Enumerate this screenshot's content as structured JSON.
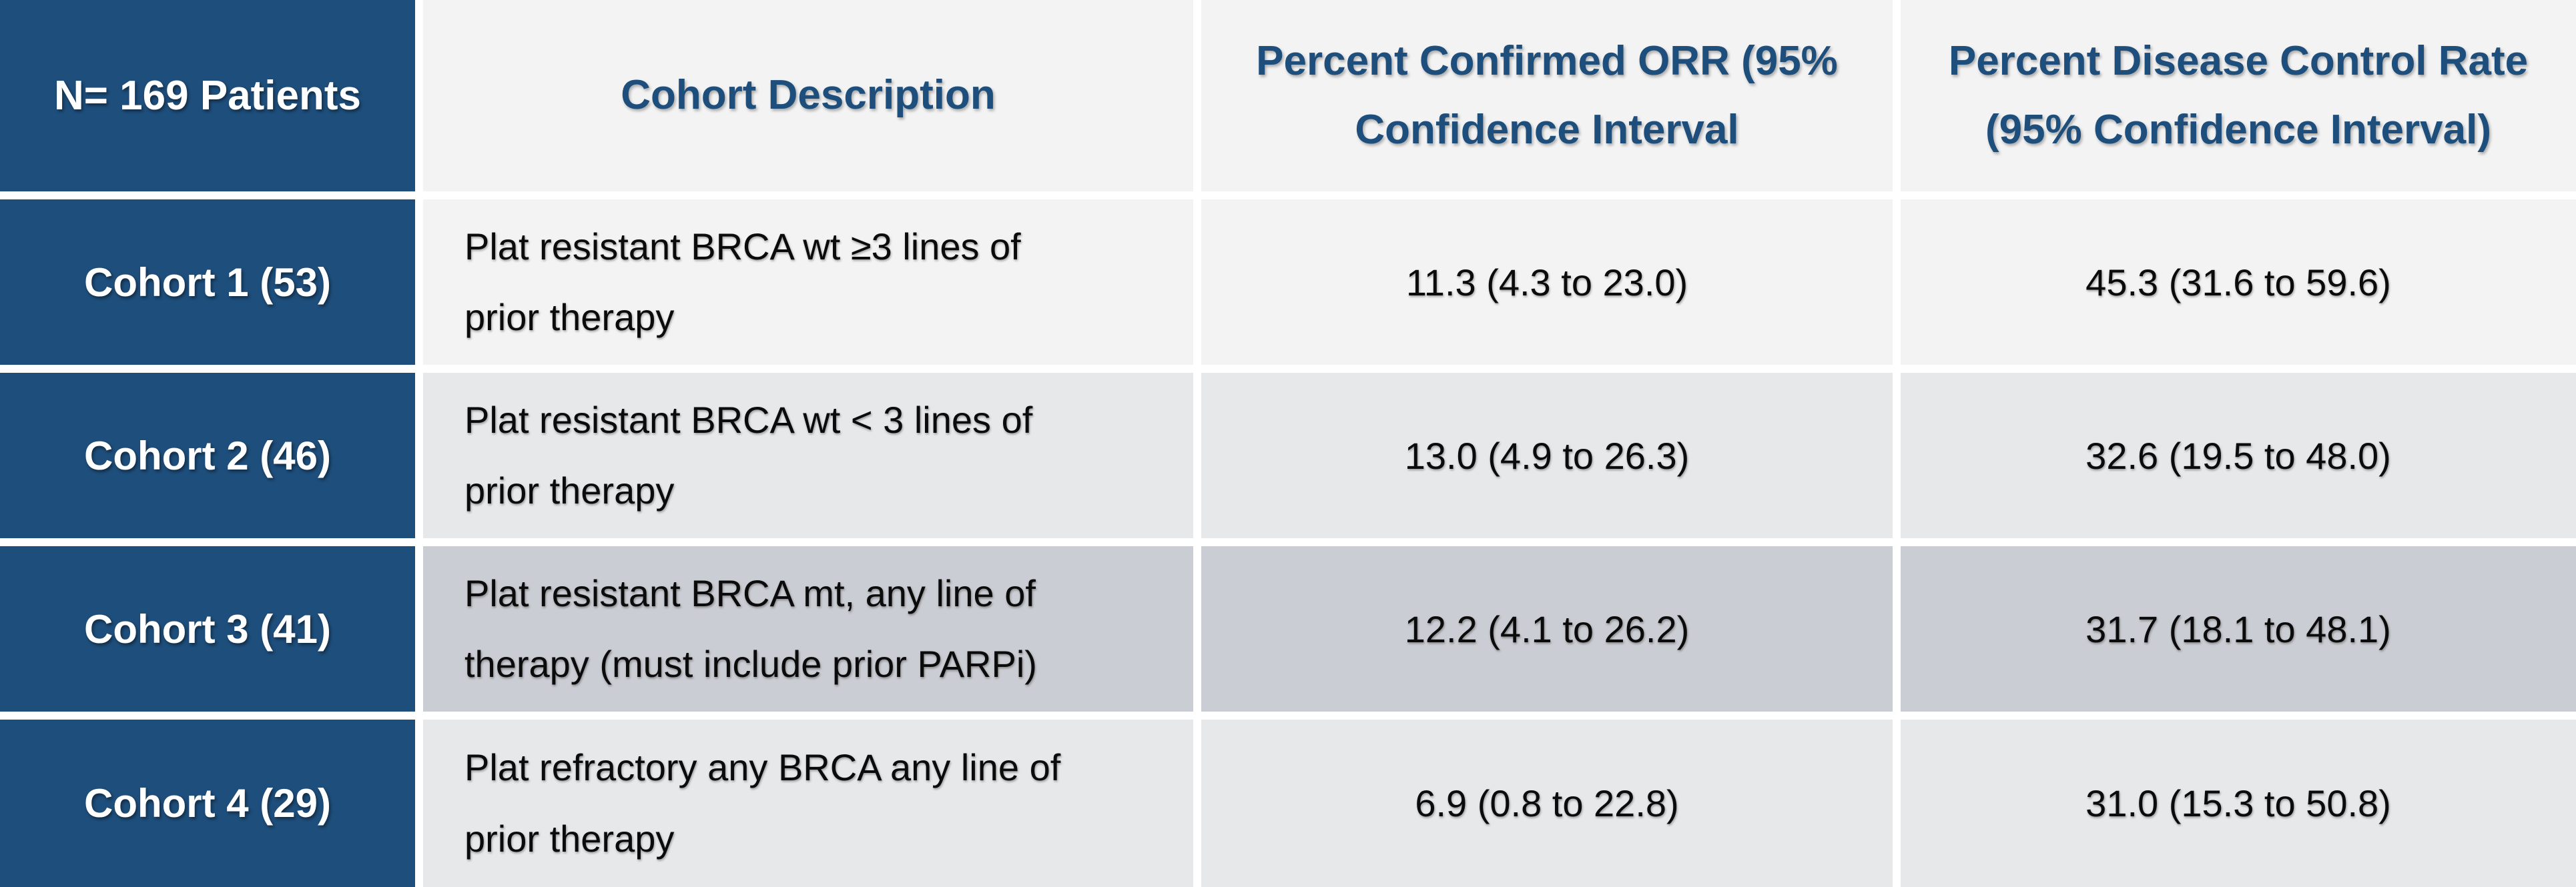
{
  "display": {
    "header": {
      "col1": "N= 169 Patients",
      "col2": "Cohort Description",
      "col3_lines": [
        "Percent Confirmed ORR (95%",
        "Confidence Interval"
      ],
      "col4_lines": [
        "Percent Disease Control Rate",
        "(95% Confidence Interval)"
      ]
    },
    "rows": [
      {
        "cohort": "Cohort 1 (53)",
        "desc_lines": [
          "Plat resistant BRCA wt ≥3 lines of",
          "prior therapy"
        ],
        "orr": "11.3 (4.3 to 23.0)",
        "dcr": "45.3 (31.6 to 59.6)"
      },
      {
        "cohort": "Cohort 2 (46)",
        "desc_lines": [
          "Plat resistant BRCA wt < 3 lines of",
          "prior therapy"
        ],
        "orr": "13.0 (4.9 to 26.3)",
        "dcr": "32.6 (19.5 to 48.0)"
      },
      {
        "cohort": "Cohort 3 (41)",
        "desc_lines": [
          "Plat resistant BRCA mt, any line of",
          "therapy (must include prior PARPi)"
        ],
        "orr": "12.2 (4.1 to 26.2)",
        "dcr": "31.7 (18.1 to 48.1)"
      },
      {
        "cohort": "Cohort 4 (29)",
        "desc_lines": [
          "Plat refractory any BRCA any line of",
          "prior therapy"
        ],
        "orr": "6.9 (0.8 to 22.8)",
        "dcr": "31.0 (15.3 to 50.8)"
      }
    ]
  },
  "colors": {
    "dark_blue": "#1E4E7B",
    "header_text_blue": "#1E4E7B",
    "light_gray_row": "#F3F3F3",
    "mid_gray_row": "#E7E8EA",
    "dark_gray_row": "#CACDD3",
    "separator_white": "#FFFFFF",
    "body_text": "#0B0B0B",
    "header_col_text": "#FFFFFF"
  },
  "chart_data": {
    "type": "table",
    "title": "N= 169 Patients",
    "columns": [
      "N= 169 Patients",
      "Cohort Description",
      "Percent Confirmed ORR (95% Confidence Interval",
      "Percent Disease Control Rate (95% Confidence Interval)"
    ],
    "rows": [
      [
        "Cohort 1 (53)",
        "Plat resistant BRCA wt ≥3 lines of prior therapy",
        "11.3 (4.3 to 23.0)",
        "45.3 (31.6 to 59.6)"
      ],
      [
        "Cohort 2 (46)",
        "Plat resistant BRCA wt < 3 lines of prior therapy",
        "13.0 (4.9 to 26.3)",
        "32.6 (19.5 to 48.0)"
      ],
      [
        "Cohort 3 (41)",
        "Plat resistant BRCA mt, any line of therapy (must include prior PARPi)",
        "12.2 (4.1 to 26.2)",
        "31.7 (18.1 to 48.1)"
      ],
      [
        "Cohort 4 (29)",
        "Plat refractory any BRCA any line of prior therapy",
        "6.9 (0.8 to 22.8)",
        "31.0 (15.3 to 50.8)"
      ]
    ],
    "numeric": {
      "total_n": 169,
      "cohort_n": [
        53,
        46,
        41,
        29
      ],
      "orr_percent": [
        11.3,
        13.0,
        12.2,
        6.9
      ],
      "orr_ci_95": [
        [
          4.3,
          23.0
        ],
        [
          4.9,
          26.3
        ],
        [
          4.1,
          26.2
        ],
        [
          0.8,
          22.8
        ]
      ],
      "dcr_percent": [
        45.3,
        32.6,
        31.7,
        31.0
      ],
      "dcr_ci_95": [
        [
          31.6,
          59.6
        ],
        [
          19.5,
          48.0
        ],
        [
          18.1,
          48.1
        ],
        [
          15.3,
          50.8
        ]
      ]
    }
  }
}
